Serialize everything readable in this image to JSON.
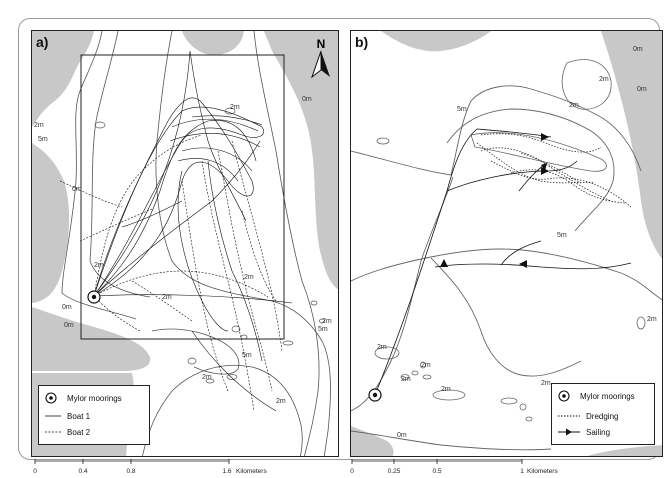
{
  "panels": [
    {
      "label": "a)",
      "north_label": "N",
      "legend": {
        "items": [
          {
            "symbol": "mooring-point",
            "label": "Mylor moorings"
          },
          {
            "symbol": "solid-line",
            "label": "Boat 1"
          },
          {
            "symbol": "dashed-line",
            "label": "Boat 2"
          }
        ]
      },
      "contour_labels": [
        "2m",
        "5m",
        "0m",
        "2m",
        "0m",
        "0m",
        "2m",
        "2m",
        "2m",
        "5m",
        "2m",
        "2m",
        "0m",
        "5m",
        "2m"
      ],
      "scale": {
        "ticks": [
          "0",
          "0.4",
          "0.8",
          "1.6"
        ],
        "unit": "Kilometers"
      }
    },
    {
      "label": "b)",
      "legend": {
        "items": [
          {
            "symbol": "mooring-point",
            "label": "Mylor moorings"
          },
          {
            "symbol": "dotted-line",
            "label": "Dredging"
          },
          {
            "symbol": "arrow-line",
            "label": "Sailing"
          }
        ]
      },
      "contour_labels": [
        "2m",
        "2m",
        "5m",
        "5m",
        "0m",
        "2m",
        "2m",
        "2m",
        "2m",
        "0m",
        "2m",
        "0m",
        "2m"
      ],
      "scale": {
        "ticks": [
          "0",
          "0.25",
          "0.5",
          "1"
        ],
        "unit": "Kilometers"
      }
    }
  ],
  "colors": {
    "land": "#c8c8c8",
    "water": "#ffffff",
    "track": "#111111",
    "contour": "#555555"
  }
}
